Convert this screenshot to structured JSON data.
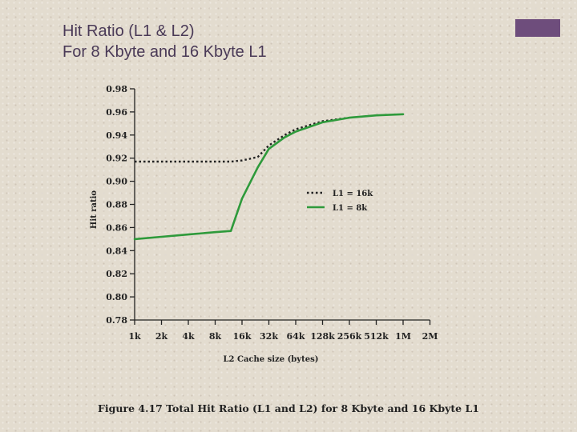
{
  "slide": {
    "title_line1": "Hit Ratio (L1 & L2)",
    "title_line2": "For 8 Kbyte and 16 Kbyte L1",
    "accent_color": "#6e4d7c"
  },
  "chart_data": {
    "type": "line",
    "title": "",
    "caption": "Figure 4.17 Total Hit Ratio (L1 and L2) for 8 Kbyte and 16 Kbyte L1",
    "xlabel": "L2 Cache size (bytes)",
    "ylabel": "Hit ratio",
    "categories": [
      "1k",
      "2k",
      "4k",
      "8k",
      "16k",
      "32k",
      "64k",
      "128k",
      "256k",
      "512k",
      "1M",
      "2M"
    ],
    "x_scale": "log2",
    "yticks": [
      "0.78",
      "0.80",
      "0.82",
      "0.84",
      "0.86",
      "0.88",
      "0.90",
      "0.92",
      "0.94",
      "0.96",
      "0.98"
    ],
    "ylim": [
      0.78,
      0.98
    ],
    "grid": false,
    "legend_position": "right-middle",
    "series": [
      {
        "name": "L1 = 16k",
        "style": "dotted",
        "color": "#222222",
        "x": [
          "1k",
          "2k",
          "4k",
          "8k",
          "12k",
          "16k",
          "24k",
          "32k",
          "48k",
          "64k",
          "128k",
          "256k"
        ],
        "values": [
          0.917,
          0.917,
          0.917,
          0.917,
          0.917,
          0.918,
          0.921,
          0.931,
          0.94,
          0.945,
          0.952,
          0.955
        ]
      },
      {
        "name": "L1 = 8k",
        "style": "solid",
        "color": "#2e9a3b",
        "x": [
          "1k",
          "2k",
          "4k",
          "8k",
          "12k",
          "16k",
          "24k",
          "32k",
          "48k",
          "64k",
          "128k",
          "256k",
          "512k",
          "1M"
        ],
        "values": [
          0.85,
          0.852,
          0.854,
          0.856,
          0.857,
          0.885,
          0.912,
          0.928,
          0.938,
          0.943,
          0.951,
          0.955,
          0.957,
          0.958
        ]
      }
    ]
  }
}
